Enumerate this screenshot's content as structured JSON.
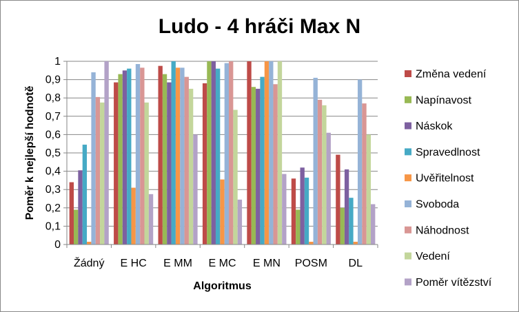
{
  "chart_data": {
    "type": "bar",
    "title": "Ludo - 4 hráči Max N",
    "xlabel": "Algoritmus",
    "ylabel": "Poměr k nejlepší hodnotě",
    "ylim": [
      0,
      1
    ],
    "yticks": [
      "0",
      "0,1",
      "0,2",
      "0,3",
      "0,4",
      "0,5",
      "0,6",
      "0,7",
      "0,8",
      "0,9",
      "1"
    ],
    "grid": true,
    "legend_position": "right",
    "categories": [
      "Žádný",
      "E HC",
      "E MM",
      "E MC",
      "E MN",
      "POSM",
      "DL"
    ],
    "series": [
      {
        "name": "Změna vedení",
        "color": "#BE4B48",
        "values": [
          0.34,
          0.885,
          0.975,
          0.88,
          1.0,
          0.36,
          0.49
        ]
      },
      {
        "name": "Napínavost",
        "color": "#98B954",
        "values": [
          0.19,
          0.93,
          0.93,
          1.0,
          0.86,
          0.19,
          0.2
        ]
      },
      {
        "name": "Náskok",
        "color": "#7D60A0",
        "values": [
          0.405,
          0.95,
          0.885,
          1.0,
          0.85,
          0.42,
          0.41
        ]
      },
      {
        "name": "Spravedlnost",
        "color": "#46AAC5",
        "values": [
          0.545,
          0.96,
          1.0,
          0.96,
          0.915,
          0.365,
          0.255
        ]
      },
      {
        "name": "Uvěřitelnost",
        "color": "#F79646",
        "values": [
          0.015,
          0.31,
          0.965,
          0.355,
          1.0,
          0.015,
          0.015
        ]
      },
      {
        "name": "Svoboda",
        "color": "#95B3D7",
        "values": [
          0.94,
          0.985,
          0.965,
          0.99,
          1.0,
          0.91,
          0.9
        ]
      },
      {
        "name": "Náhodnost",
        "color": "#D99694",
        "values": [
          0.805,
          0.965,
          0.915,
          1.0,
          0.875,
          0.79,
          0.77
        ]
      },
      {
        "name": "Vedení",
        "color": "#C3D69B",
        "values": [
          0.775,
          0.775,
          0.85,
          0.735,
          1.0,
          0.76,
          0.6
        ]
      },
      {
        "name": "Poměr vítězství",
        "color": "#B3A2C7",
        "values": [
          1.0,
          0.275,
          0.6,
          0.245,
          0.385,
          0.61,
          0.22
        ]
      }
    ]
  }
}
